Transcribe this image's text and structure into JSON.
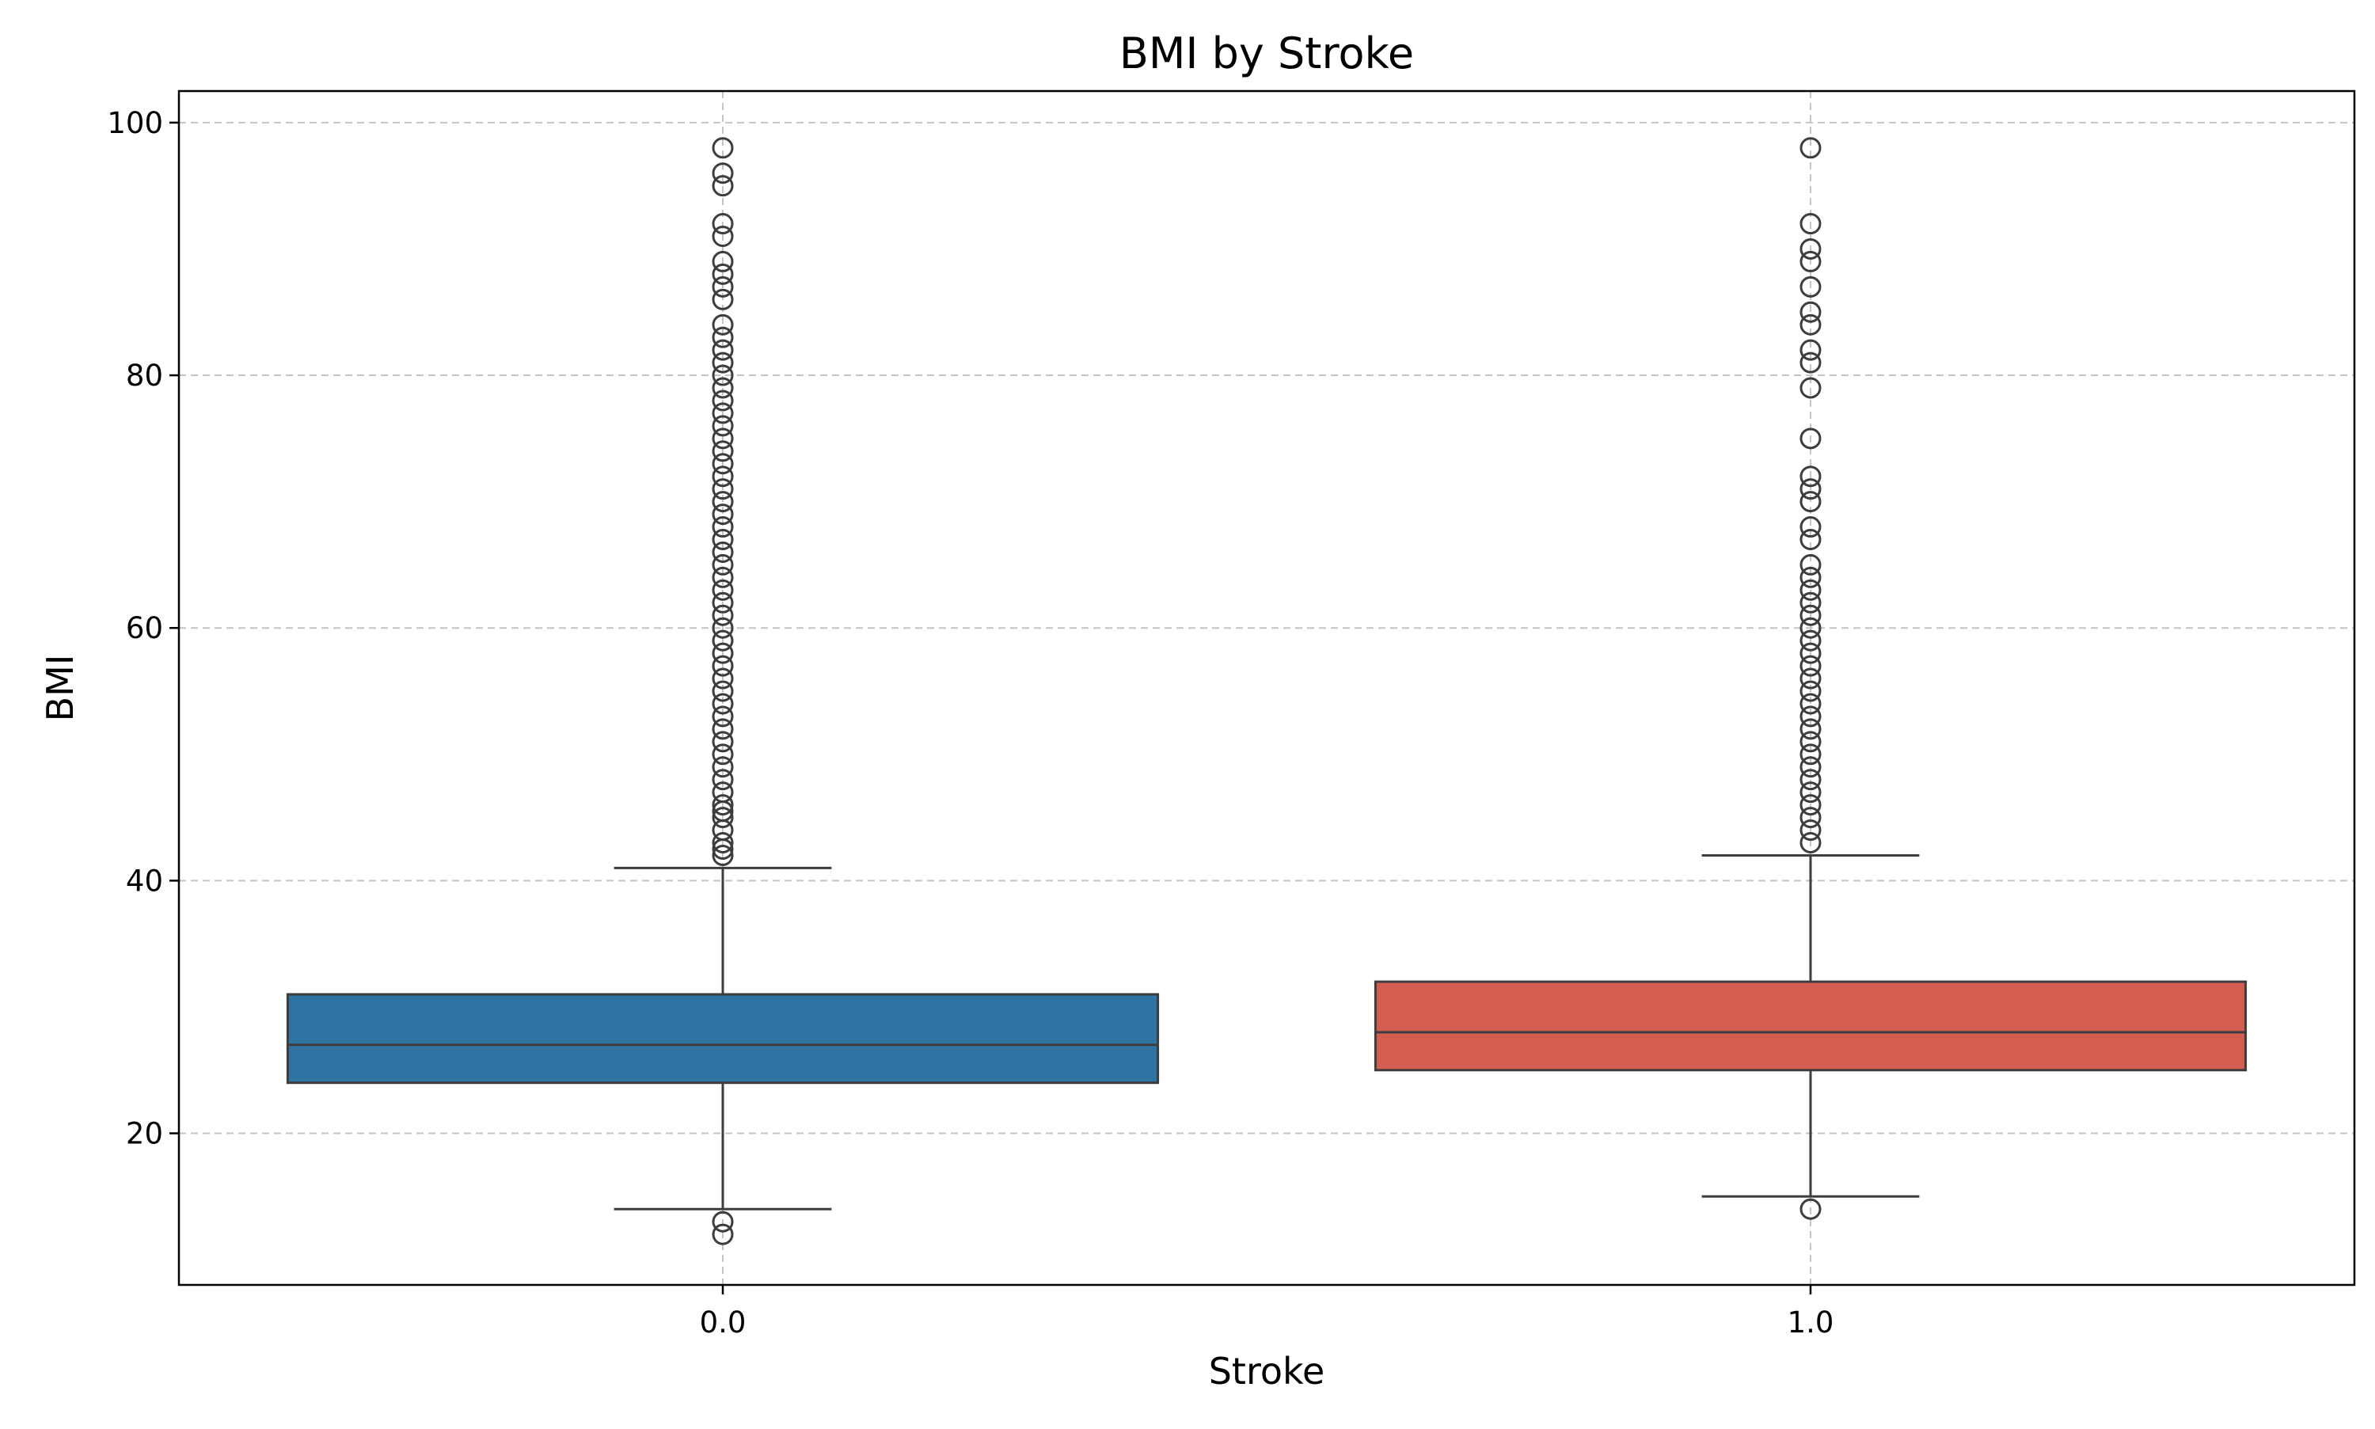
{
  "chart_data": {
    "type": "box",
    "title": "BMI by Stroke",
    "xlabel": "Stroke",
    "ylabel": "BMI",
    "ylim": [
      8,
      102.5
    ],
    "yticks": [
      20,
      40,
      60,
      80,
      100
    ],
    "grid": true,
    "legend": null,
    "categories": [
      "0.0",
      "1.0"
    ],
    "boxes": [
      {
        "category": "0.0",
        "color": "#2e73a2",
        "whisker_low": 14,
        "q1": 24,
        "median": 27,
        "q3": 31,
        "whisker_high": 41,
        "outliers": [
          12,
          13,
          42,
          42.5,
          43,
          44,
          45,
          45.5,
          46,
          47,
          48,
          49,
          50,
          51,
          52,
          53,
          54,
          55,
          56,
          57,
          58,
          59,
          60,
          61,
          62,
          63,
          64,
          65,
          66,
          67,
          68,
          69,
          70,
          71,
          72,
          73,
          74,
          75,
          76,
          77,
          78,
          79,
          80,
          81,
          82,
          83,
          84,
          86,
          87,
          88,
          89,
          91,
          92,
          95,
          96,
          98
        ]
      },
      {
        "category": "1.0",
        "color": "#d35d50",
        "whisker_low": 15,
        "q1": 25,
        "median": 28,
        "q3": 32,
        "whisker_high": 42,
        "outliers": [
          14,
          43,
          44,
          45,
          46,
          47,
          48,
          49,
          50,
          51,
          52,
          53,
          54,
          55,
          56,
          57,
          58,
          59,
          60,
          61,
          62,
          63,
          64,
          65,
          67,
          68,
          70,
          71,
          72,
          75,
          79,
          81,
          82,
          84,
          85,
          87,
          89,
          90,
          92,
          98
        ]
      }
    ]
  }
}
